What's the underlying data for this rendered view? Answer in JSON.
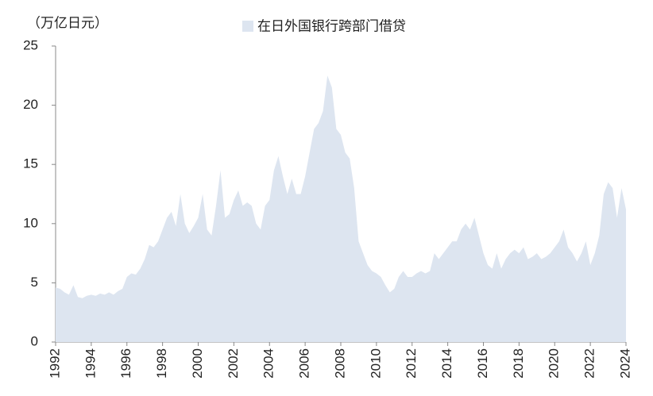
{
  "chart_data": {
    "type": "area",
    "y_label": "（万亿日元）",
    "x": [
      1992,
      1992.25,
      1992.5,
      1992.75,
      1993,
      1993.25,
      1993.5,
      1993.75,
      1994,
      1994.25,
      1994.5,
      1994.75,
      1995,
      1995.25,
      1995.5,
      1995.75,
      1996,
      1996.25,
      1996.5,
      1996.75,
      1997,
      1997.25,
      1997.5,
      1997.75,
      1998,
      1998.25,
      1998.5,
      1998.75,
      1999,
      1999.25,
      1999.5,
      1999.75,
      2000,
      2000.25,
      2000.5,
      2000.75,
      2001,
      2001.25,
      2001.5,
      2001.75,
      2002,
      2002.25,
      2002.5,
      2002.75,
      2003,
      2003.25,
      2003.5,
      2003.75,
      2004,
      2004.25,
      2004.5,
      2004.75,
      2005,
      2005.25,
      2005.5,
      2005.75,
      2006,
      2006.25,
      2006.5,
      2006.75,
      2007,
      2007.25,
      2007.5,
      2007.75,
      2008,
      2008.25,
      2008.5,
      2008.75,
      2009,
      2009.25,
      2009.5,
      2009.75,
      2010,
      2010.25,
      2010.5,
      2010.75,
      2011,
      2011.25,
      2011.5,
      2011.75,
      2012,
      2012.25,
      2012.5,
      2012.75,
      2013,
      2013.25,
      2013.5,
      2013.75,
      2014,
      2014.25,
      2014.5,
      2014.75,
      2015,
      2015.25,
      2015.5,
      2015.75,
      2016,
      2016.25,
      2016.5,
      2016.75,
      2017,
      2017.25,
      2017.5,
      2017.75,
      2018,
      2018.25,
      2018.5,
      2018.75,
      2019,
      2019.25,
      2019.5,
      2019.75,
      2020,
      2020.25,
      2020.5,
      2020.75,
      2021,
      2021.25,
      2021.5,
      2021.75,
      2022,
      2022.25,
      2022.5,
      2022.75,
      2023,
      2023.25,
      2023.5,
      2023.75,
      2024
    ],
    "series": [
      {
        "name": "在日外国银行跨部门借贷",
        "color": "#dde5f0",
        "values": [
          4.6,
          4.5,
          4.2,
          4.0,
          4.8,
          3.8,
          3.7,
          3.9,
          4.0,
          3.9,
          4.1,
          4.0,
          4.2,
          4.0,
          4.3,
          4.5,
          5.5,
          5.8,
          5.7,
          6.2,
          7.0,
          8.2,
          8.0,
          8.5,
          9.5,
          10.5,
          11.0,
          9.8,
          12.5,
          10.0,
          9.2,
          9.8,
          10.5,
          12.5,
          9.5,
          9.0,
          11.5,
          14.5,
          10.5,
          10.8,
          12.0,
          12.8,
          11.5,
          11.8,
          11.5,
          10.0,
          9.5,
          11.5,
          12.0,
          14.5,
          15.7,
          14.0,
          12.5,
          13.8,
          12.5,
          12.5,
          14.0,
          16.0,
          18.0,
          18.5,
          19.5,
          22.5,
          21.5,
          18.0,
          17.5,
          16.0,
          15.5,
          13.0,
          8.5,
          7.5,
          6.5,
          6.0,
          5.8,
          5.5,
          4.8,
          4.2,
          4.5,
          5.5,
          6.0,
          5.5,
          5.5,
          5.8,
          6.0,
          5.8,
          6.0,
          7.5,
          7.0,
          7.5,
          8.0,
          8.5,
          8.5,
          9.5,
          10.0,
          9.5,
          10.5,
          9.0,
          7.5,
          6.5,
          6.2,
          7.5,
          6.2,
          7.0,
          7.5,
          7.8,
          7.5,
          8.0,
          7.0,
          7.2,
          7.5,
          7.0,
          7.2,
          7.5,
          8.0,
          8.5,
          9.5,
          8.0,
          7.5,
          6.8,
          7.5,
          8.5,
          6.5,
          7.5,
          9.0,
          12.5,
          13.5,
          13.0,
          10.5,
          13.0,
          11.2
        ]
      }
    ],
    "xlim": [
      1992,
      2024
    ],
    "xticks": [
      1992,
      1994,
      1996,
      1998,
      2000,
      2002,
      2004,
      2006,
      2008,
      2010,
      2012,
      2014,
      2016,
      2018,
      2020,
      2022,
      2024
    ],
    "ylim": [
      0,
      25
    ],
    "yticks": [
      0,
      5,
      10,
      15,
      20,
      25
    ]
  }
}
